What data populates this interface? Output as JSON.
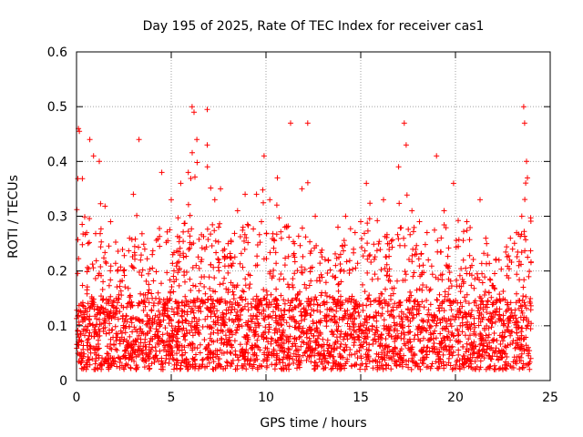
{
  "chart_data": {
    "type": "scatter",
    "title": "Day 195 of 2025, Rate Of TEC Index for receiver cas1",
    "xlabel": "GPS time / hours",
    "ylabel": "ROTI / TECUs",
    "xlim": [
      0,
      25
    ],
    "ylim": [
      0,
      0.6
    ],
    "x_ticks": [
      0,
      5,
      10,
      15,
      20,
      25
    ],
    "y_ticks": [
      0,
      0.1,
      0.2,
      0.3,
      0.4,
      0.5,
      0.6
    ],
    "grid": true,
    "marker": "plus",
    "series_color": "#ff0000",
    "data_coverage": [
      0,
      24
    ],
    "baseline_band": [
      0.02,
      0.15
    ],
    "peaks": [
      {
        "x": 0.1,
        "y": 0.46
      },
      {
        "x": 0.15,
        "y": 0.455
      },
      {
        "x": 0.7,
        "y": 0.44
      },
      {
        "x": 0.9,
        "y": 0.41
      },
      {
        "x": 1.2,
        "y": 0.4
      },
      {
        "x": 1.8,
        "y": 0.29
      },
      {
        "x": 2.8,
        "y": 0.26
      },
      {
        "x": 3.0,
        "y": 0.34
      },
      {
        "x": 3.3,
        "y": 0.44
      },
      {
        "x": 3.6,
        "y": 0.24
      },
      {
        "x": 4.0,
        "y": 0.23
      },
      {
        "x": 4.5,
        "y": 0.38
      },
      {
        "x": 5.0,
        "y": 0.33
      },
      {
        "x": 5.5,
        "y": 0.36
      },
      {
        "x": 5.9,
        "y": 0.38
      },
      {
        "x": 6.1,
        "y": 0.5
      },
      {
        "x": 6.2,
        "y": 0.49
      },
      {
        "x": 6.35,
        "y": 0.44
      },
      {
        "x": 6.9,
        "y": 0.495
      },
      {
        "x": 6.9,
        "y": 0.43
      },
      {
        "x": 7.3,
        "y": 0.33
      },
      {
        "x": 7.5,
        "y": 0.28
      },
      {
        "x": 7.6,
        "y": 0.35
      },
      {
        "x": 8.0,
        "y": 0.25
      },
      {
        "x": 8.5,
        "y": 0.31
      },
      {
        "x": 8.9,
        "y": 0.34
      },
      {
        "x": 9.5,
        "y": 0.34
      },
      {
        "x": 9.9,
        "y": 0.41
      },
      {
        "x": 10.2,
        "y": 0.33
      },
      {
        "x": 10.6,
        "y": 0.37
      },
      {
        "x": 11.0,
        "y": 0.28
      },
      {
        "x": 11.3,
        "y": 0.47
      },
      {
        "x": 11.5,
        "y": 0.25
      },
      {
        "x": 11.9,
        "y": 0.35
      },
      {
        "x": 12.2,
        "y": 0.47
      },
      {
        "x": 12.6,
        "y": 0.3
      },
      {
        "x": 13.3,
        "y": 0.22
      },
      {
        "x": 13.8,
        "y": 0.28
      },
      {
        "x": 14.2,
        "y": 0.3
      },
      {
        "x": 14.7,
        "y": 0.27
      },
      {
        "x": 15.0,
        "y": 0.29
      },
      {
        "x": 15.3,
        "y": 0.36
      },
      {
        "x": 16.2,
        "y": 0.33
      },
      {
        "x": 16.5,
        "y": 0.25
      },
      {
        "x": 17.0,
        "y": 0.39
      },
      {
        "x": 17.3,
        "y": 0.47
      },
      {
        "x": 17.4,
        "y": 0.43
      },
      {
        "x": 17.7,
        "y": 0.31
      },
      {
        "x": 18.1,
        "y": 0.29
      },
      {
        "x": 18.5,
        "y": 0.27
      },
      {
        "x": 19.0,
        "y": 0.41
      },
      {
        "x": 19.4,
        "y": 0.31
      },
      {
        "x": 19.9,
        "y": 0.36
      },
      {
        "x": 20.6,
        "y": 0.29
      },
      {
        "x": 21.3,
        "y": 0.33
      },
      {
        "x": 21.6,
        "y": 0.26
      },
      {
        "x": 22.3,
        "y": 0.22
      },
      {
        "x": 22.9,
        "y": 0.26
      },
      {
        "x": 23.5,
        "y": 0.3
      },
      {
        "x": 23.6,
        "y": 0.5
      },
      {
        "x": 23.65,
        "y": 0.47
      },
      {
        "x": 23.75,
        "y": 0.4
      },
      {
        "x": 23.8,
        "y": 0.37
      }
    ]
  }
}
